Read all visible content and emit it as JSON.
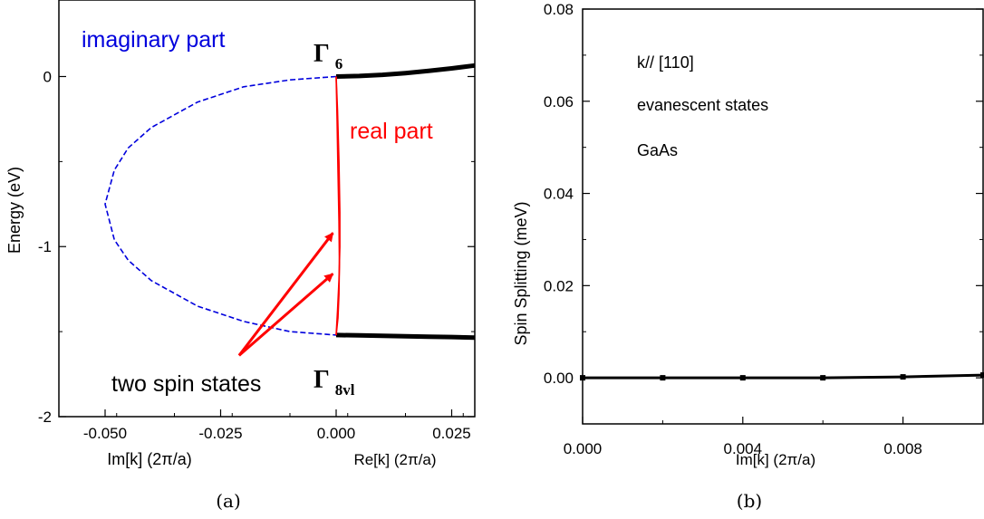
{
  "chart_data": [
    {
      "panel": "a",
      "type": "line",
      "caption": "(a)",
      "ylabel": "Energy (eV)",
      "xlabel_left": "Im[k] (2π/a)",
      "xlabel_right": "Re[k] (2π/a)",
      "xlim": [
        -0.06,
        0.03
      ],
      "ylim": [
        -2,
        0.45
      ],
      "xticks": [
        -0.05,
        -0.025,
        0.0,
        0.025
      ],
      "xtick_labels": [
        "-0.050",
        "-0.025",
        "0.000",
        "0.025"
      ],
      "yticks": [
        0,
        -1,
        -2
      ],
      "ytick_labels": [
        "0",
        "-1",
        "-2"
      ],
      "series": [
        {
          "part": "imaginary",
          "color": "#0000dd",
          "style": "dashed",
          "x": [
            0.0,
            -0.01,
            -0.02,
            -0.03,
            -0.04,
            -0.045,
            -0.048,
            -0.05,
            -0.048,
            -0.045,
            -0.04,
            -0.03,
            -0.02,
            -0.01,
            0.0
          ],
          "y": [
            0.0,
            -0.02,
            -0.06,
            -0.15,
            -0.3,
            -0.42,
            -0.55,
            -0.75,
            -0.96,
            -1.08,
            -1.2,
            -1.35,
            -1.44,
            -1.5,
            -1.52
          ]
        },
        {
          "part": "real-upper",
          "color": "#000000",
          "style": "solid",
          "x": [
            0.0,
            0.005,
            0.01,
            0.015,
            0.02,
            0.025,
            0.03
          ],
          "y": [
            0.0,
            0.003,
            0.01,
            0.02,
            0.033,
            0.048,
            0.065
          ]
        },
        {
          "part": "real-lower",
          "color": "#000000",
          "style": "solid",
          "x": [
            0.0,
            0.005,
            0.01,
            0.015,
            0.02,
            0.025,
            0.03
          ],
          "y": [
            -1.52,
            -1.522,
            -1.525,
            -1.527,
            -1.53,
            -1.532,
            -1.535
          ]
        },
        {
          "part": "spin-state-1",
          "color": "#ff0000",
          "style": "solid",
          "x": [
            0.0,
            0.0003,
            0.0006,
            0.0008,
            0.0008,
            0.0006,
            0.0003,
            0.0
          ],
          "y": [
            0.0,
            -0.2,
            -0.5,
            -0.8,
            -1.0,
            -1.2,
            -1.38,
            -1.52
          ]
        },
        {
          "part": "spin-state-2",
          "color": "#ff0000",
          "style": "solid",
          "x": [
            0.0,
            0.0002,
            0.0004,
            0.0006,
            0.0007,
            0.0006,
            0.0004,
            0.0
          ],
          "y": [
            0.0,
            -0.25,
            -0.55,
            -0.85,
            -1.1,
            -1.28,
            -1.42,
            -1.52
          ]
        }
      ],
      "annotations": {
        "imaginary": "imaginary part",
        "real": "real part",
        "spin": "two spin states",
        "gamma_top_base": "Γ",
        "gamma_top_sub": "6",
        "gamma_bottom_base": "Γ",
        "gamma_bottom_sub": "8vl",
        "arrow_origin": [
          -0.021,
          -1.64
        ],
        "arrow_targets": [
          [
            -0.0007,
            -0.92
          ],
          [
            -0.0007,
            -1.16
          ]
        ]
      }
    },
    {
      "panel": "b",
      "type": "line",
      "caption": "(b)",
      "ylabel": "Spin Splitting (meV)",
      "xlabel": "Im[k] (2π/a)",
      "xlim": [
        0.0,
        0.01
      ],
      "ylim": [
        -0.01,
        0.08
      ],
      "xticks": [
        0.0,
        0.004,
        0.008
      ],
      "xtick_labels": [
        "0.000",
        "0.004",
        "0.008"
      ],
      "yticks": [
        0.0,
        0.02,
        0.04,
        0.06,
        0.08
      ],
      "ytick_labels": [
        "0.00",
        "0.02",
        "0.04",
        "0.06",
        "0.08"
      ],
      "series": [
        {
          "color": "#000000",
          "style": "solid",
          "x": [
            0.0,
            0.002,
            0.004,
            0.006,
            0.008,
            0.01
          ],
          "y": [
            0.0,
            0.0,
            0.0,
            0.0,
            0.0002,
            0.0006
          ]
        }
      ],
      "annotations": [
        "k// [110]",
        "evanescent states",
        "GaAs"
      ]
    }
  ]
}
